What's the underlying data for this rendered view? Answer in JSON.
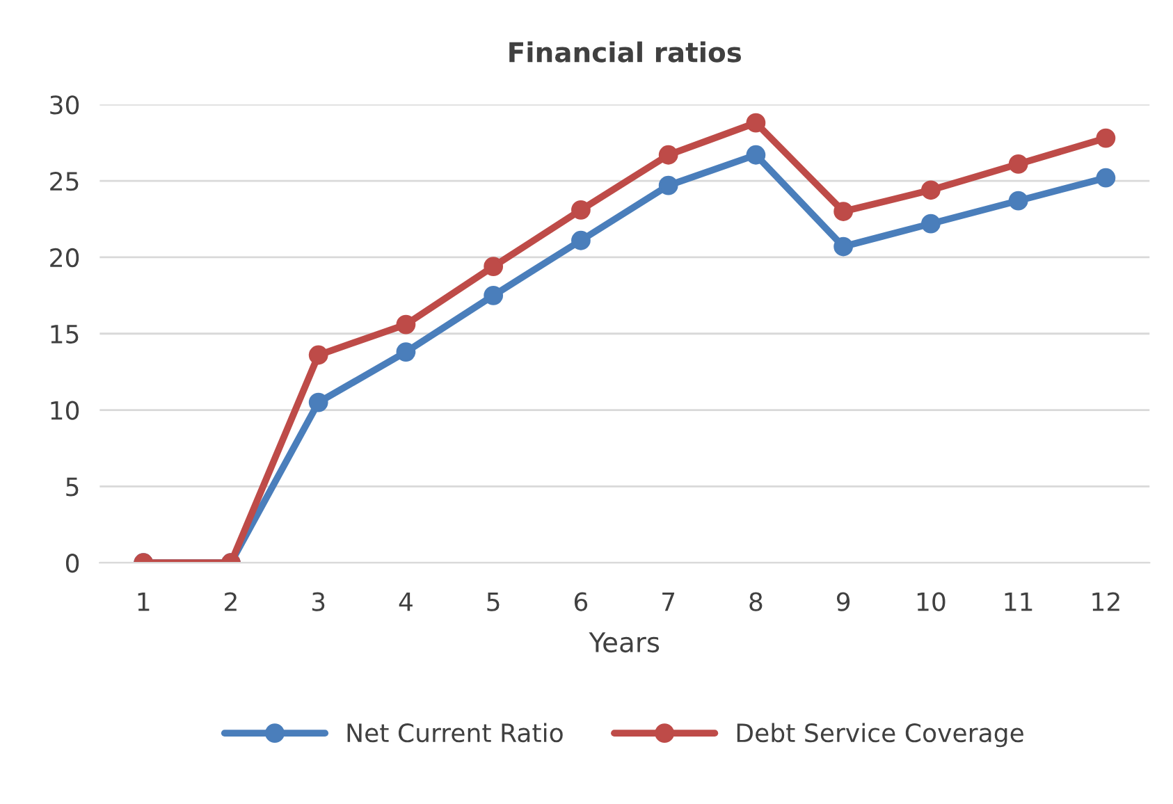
{
  "chart_data": {
    "type": "line",
    "title": "Financial ratios",
    "xlabel": "Years",
    "categories": [
      "1",
      "2",
      "3",
      "4",
      "5",
      "6",
      "7",
      "8",
      "9",
      "10",
      "11",
      "12"
    ],
    "series": [
      {
        "name": "Net Current Ratio",
        "color": "#4a7ebb",
        "values": [
          0,
          0,
          10.5,
          13.8,
          17.5,
          21.1,
          24.7,
          26.7,
          20.7,
          22.2,
          23.7,
          25.2
        ]
      },
      {
        "name": "Debt Service Coverage",
        "color": "#be4b48",
        "values": [
          0,
          0,
          13.6,
          15.6,
          19.4,
          23.1,
          26.7,
          28.8,
          23.0,
          24.4,
          26.1,
          27.8
        ]
      }
    ],
    "ylim": [
      0,
      30
    ],
    "yticks": [
      0,
      5,
      10,
      15,
      20,
      25,
      30
    ],
    "grid": "y",
    "legend": "bottom",
    "marker": "circle",
    "line_style": "solid"
  }
}
